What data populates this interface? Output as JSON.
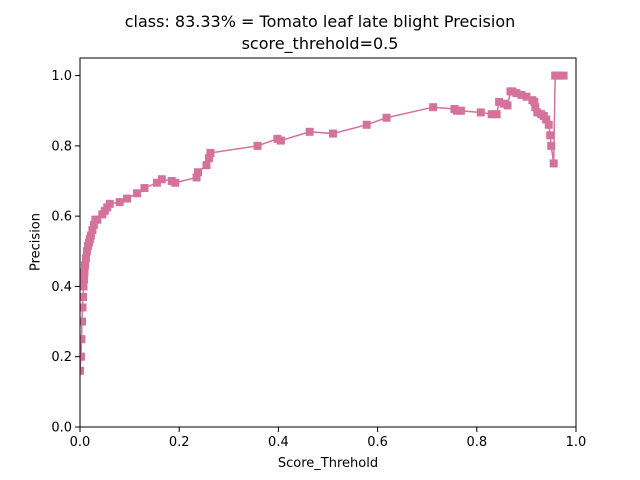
{
  "chart_data": {
    "type": "line",
    "title": "class: 83.33% = Tomato leaf late blight Precision",
    "subtitle": "score_threhold=0.5",
    "xlabel": "Score_Threhold",
    "ylabel": "Precision",
    "xlim": [
      0.0,
      1.0
    ],
    "ylim": [
      0.0,
      1.05
    ],
    "xticks": [
      "0.0",
      "0.2",
      "0.4",
      "0.6",
      "0.8",
      "1.0"
    ],
    "yticks": [
      "0.0",
      "0.2",
      "0.4",
      "0.6",
      "0.8",
      "1.0"
    ],
    "grid": false,
    "color": "#d4729c",
    "marker": "square",
    "series": [
      {
        "x": [
          0.0,
          0.002,
          0.003,
          0.004,
          0.005,
          0.006,
          0.007,
          0.008,
          0.009,
          0.01,
          0.012,
          0.014,
          0.016,
          0.018,
          0.02,
          0.022,
          0.025,
          0.028,
          0.031,
          0.035,
          0.045,
          0.05,
          0.055,
          0.06,
          0.08,
          0.095,
          0.115,
          0.13,
          0.155,
          0.165,
          0.185,
          0.192,
          0.235,
          0.238,
          0.255,
          0.26,
          0.263,
          0.358,
          0.398,
          0.405,
          0.463,
          0.51,
          0.578,
          0.618,
          0.712,
          0.755,
          0.76,
          0.768,
          0.808,
          0.83,
          0.84,
          0.845,
          0.855,
          0.862,
          0.868,
          0.872,
          0.88,
          0.89,
          0.9,
          0.912,
          0.916,
          0.918,
          0.922,
          0.93,
          0.935,
          0.94,
          0.945,
          0.948,
          0.95,
          0.955,
          0.958,
          0.96,
          0.968,
          0.975
        ],
        "values": [
          0.16,
          0.2,
          0.25,
          0.3,
          0.34,
          0.37,
          0.4,
          0.42,
          0.44,
          0.46,
          0.48,
          0.5,
          0.515,
          0.525,
          0.535,
          0.545,
          0.56,
          0.575,
          0.59,
          0.59,
          0.605,
          0.615,
          0.625,
          0.635,
          0.64,
          0.65,
          0.665,
          0.68,
          0.695,
          0.705,
          0.7,
          0.695,
          0.71,
          0.725,
          0.745,
          0.765,
          0.78,
          0.8,
          0.82,
          0.815,
          0.84,
          0.835,
          0.86,
          0.88,
          0.91,
          0.905,
          0.9,
          0.9,
          0.895,
          0.89,
          0.89,
          0.925,
          0.92,
          0.915,
          0.955,
          0.955,
          0.95,
          0.945,
          0.94,
          0.93,
          0.925,
          0.91,
          0.895,
          0.89,
          0.885,
          0.875,
          0.86,
          0.83,
          0.8,
          0.75,
          1.0,
          1.0,
          1.0,
          1.0
        ]
      }
    ]
  }
}
